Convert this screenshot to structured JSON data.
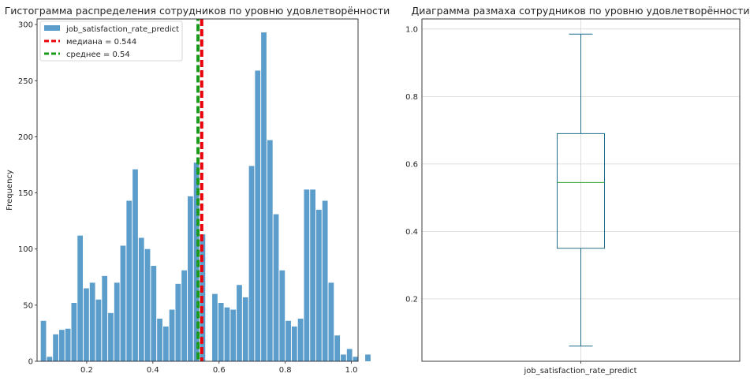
{
  "chart_data": [
    {
      "type": "histogram",
      "title": "Гистограмма распределения сотрудников по уровню удовлетворённости",
      "xlabel": "",
      "ylabel": "Frequency",
      "xlim": [
        0.05,
        1.02
      ],
      "ylim": [
        0,
        305
      ],
      "xticks": [
        "0.2",
        "0.4",
        "0.6",
        "0.8",
        "1.0"
      ],
      "yticks": [
        "0",
        "50",
        "100",
        "150",
        "200",
        "250",
        "300"
      ],
      "grid": false,
      "color": "#5b9dcb",
      "bins_start": 0.06,
      "bin_width": 0.0185,
      "counts": [
        36,
        4,
        24,
        28,
        29,
        52,
        112,
        65,
        70,
        55,
        76,
        43,
        70,
        103,
        143,
        171,
        110,
        100,
        85,
        38,
        31,
        46,
        69,
        81,
        147,
        177,
        113,
        0,
        60,
        52,
        48,
        46,
        68,
        57,
        174,
        259,
        293,
        197,
        131,
        81,
        36,
        31,
        38,
        153,
        153,
        135,
        143,
        70,
        23,
        6,
        11,
        4,
        0,
        6
      ],
      "series_name": "job_satisfaction_rate_predict",
      "lines": [
        {
          "label": "медиана = 0.544",
          "x": 0.544,
          "color": "#e8000b"
        },
        {
          "label": "среднее = 0.54",
          "x": 0.54,
          "color": "#1a9a1a"
        }
      ],
      "legend_position": "upper left"
    },
    {
      "type": "box",
      "title": "Диаграмма размаха сотрудников по уровню удовлетворённости",
      "xlabel": "",
      "ylabel": "",
      "category": "job_satisfaction_rate_predict",
      "whisker_low": 0.06,
      "q1": 0.35,
      "median": 0.545,
      "q3": 0.69,
      "whisker_high": 0.985,
      "ylim": [
        0.015,
        1.03
      ],
      "yticks": [
        "0.2",
        "0.4",
        "0.6",
        "0.8",
        "1.0"
      ],
      "grid": true,
      "box_color": "#1f6f8b",
      "median_color": "#2ca02c"
    }
  ]
}
